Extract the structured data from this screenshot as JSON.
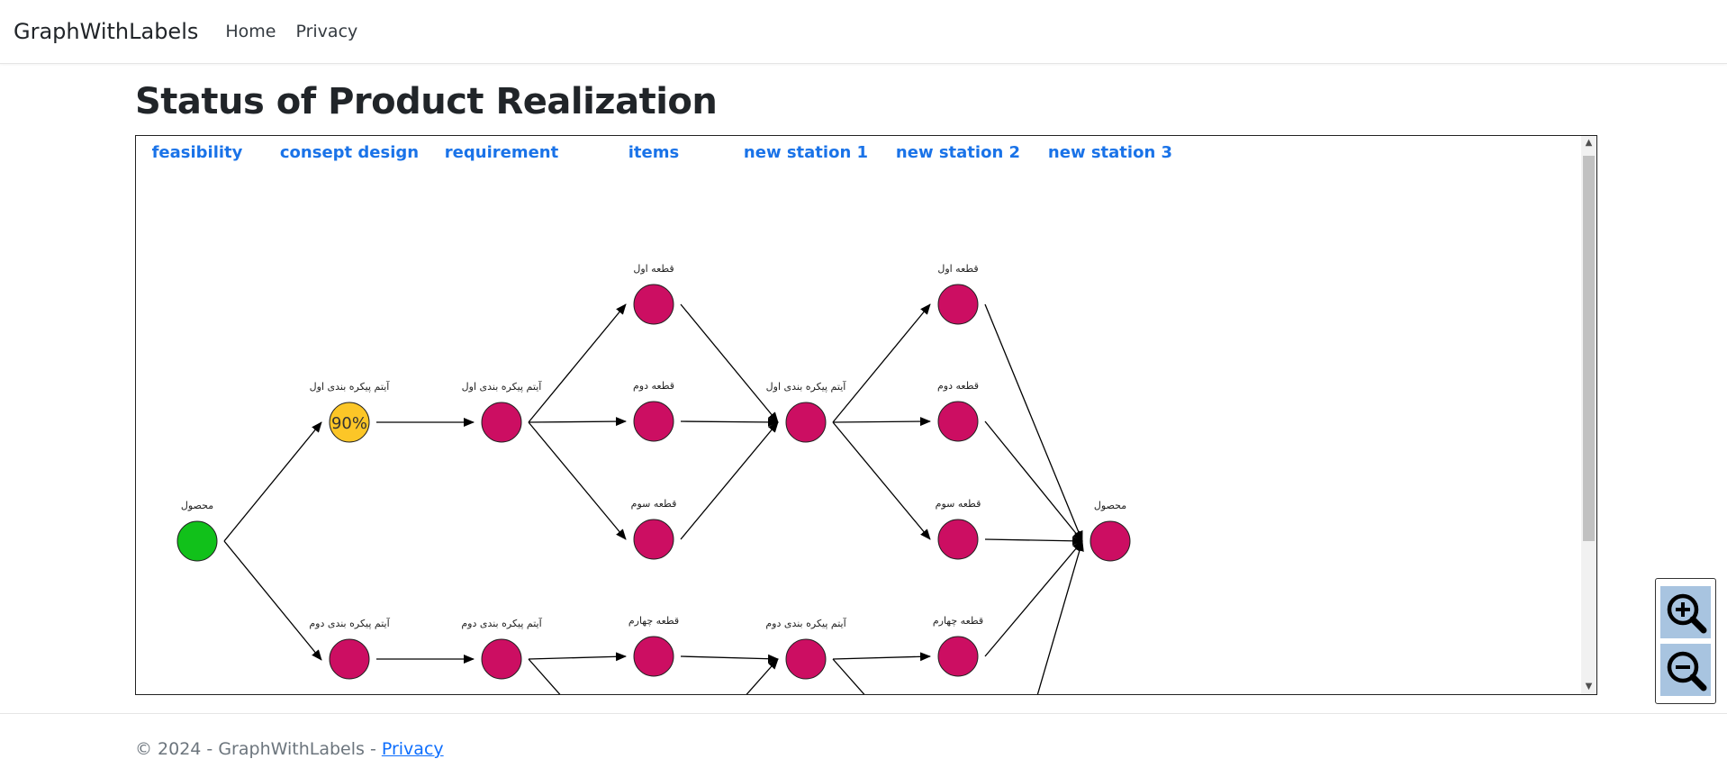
{
  "nav": {
    "brand": "GraphWithLabels",
    "links": [
      "Home",
      "Privacy"
    ]
  },
  "page": {
    "title": "Status of Product Realization"
  },
  "graph": {
    "columns": [
      "feasibility",
      "consept design",
      "requirement",
      "items",
      "new station 1",
      "new station 2",
      "new station 3"
    ],
    "node_labels": {
      "product": "محصول",
      "config1": "آیتم پیکره بندی اول",
      "config2": "آیتم پیکره بندی دوم",
      "part1": "قطعه اول",
      "part2": "قطعه دوم",
      "part3": "قطعه سوم",
      "part4": "قطعه چهارم"
    },
    "progress_label": "90%",
    "progress_value": 0.9,
    "colors": {
      "complete": "#11c11a",
      "in_progress": "#fcc627",
      "pending": "#cc0e62",
      "header": "#1a73e8"
    }
  },
  "footer": {
    "text": "© 2024 - GraphWithLabels - ",
    "link": "Privacy"
  },
  "zoom": {
    "in_icon": "zoom-in-icon",
    "out_icon": "zoom-out-icon"
  }
}
